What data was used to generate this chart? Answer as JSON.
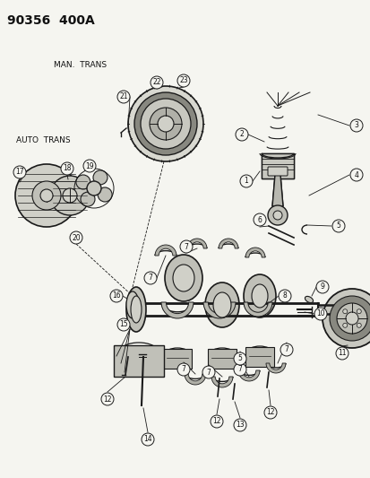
{
  "title": "90356  400A",
  "label_man_trans": "MAN.  TRANS",
  "label_auto_trans": "AUTO  TRANS",
  "bg_color": "#f5f5f0",
  "text_color": "#111111",
  "dc": "#1a1a1a",
  "figsize": [
    4.14,
    5.33
  ],
  "dpi": 100,
  "xlim": [
    0,
    414
  ],
  "ylim": [
    533,
    0
  ]
}
